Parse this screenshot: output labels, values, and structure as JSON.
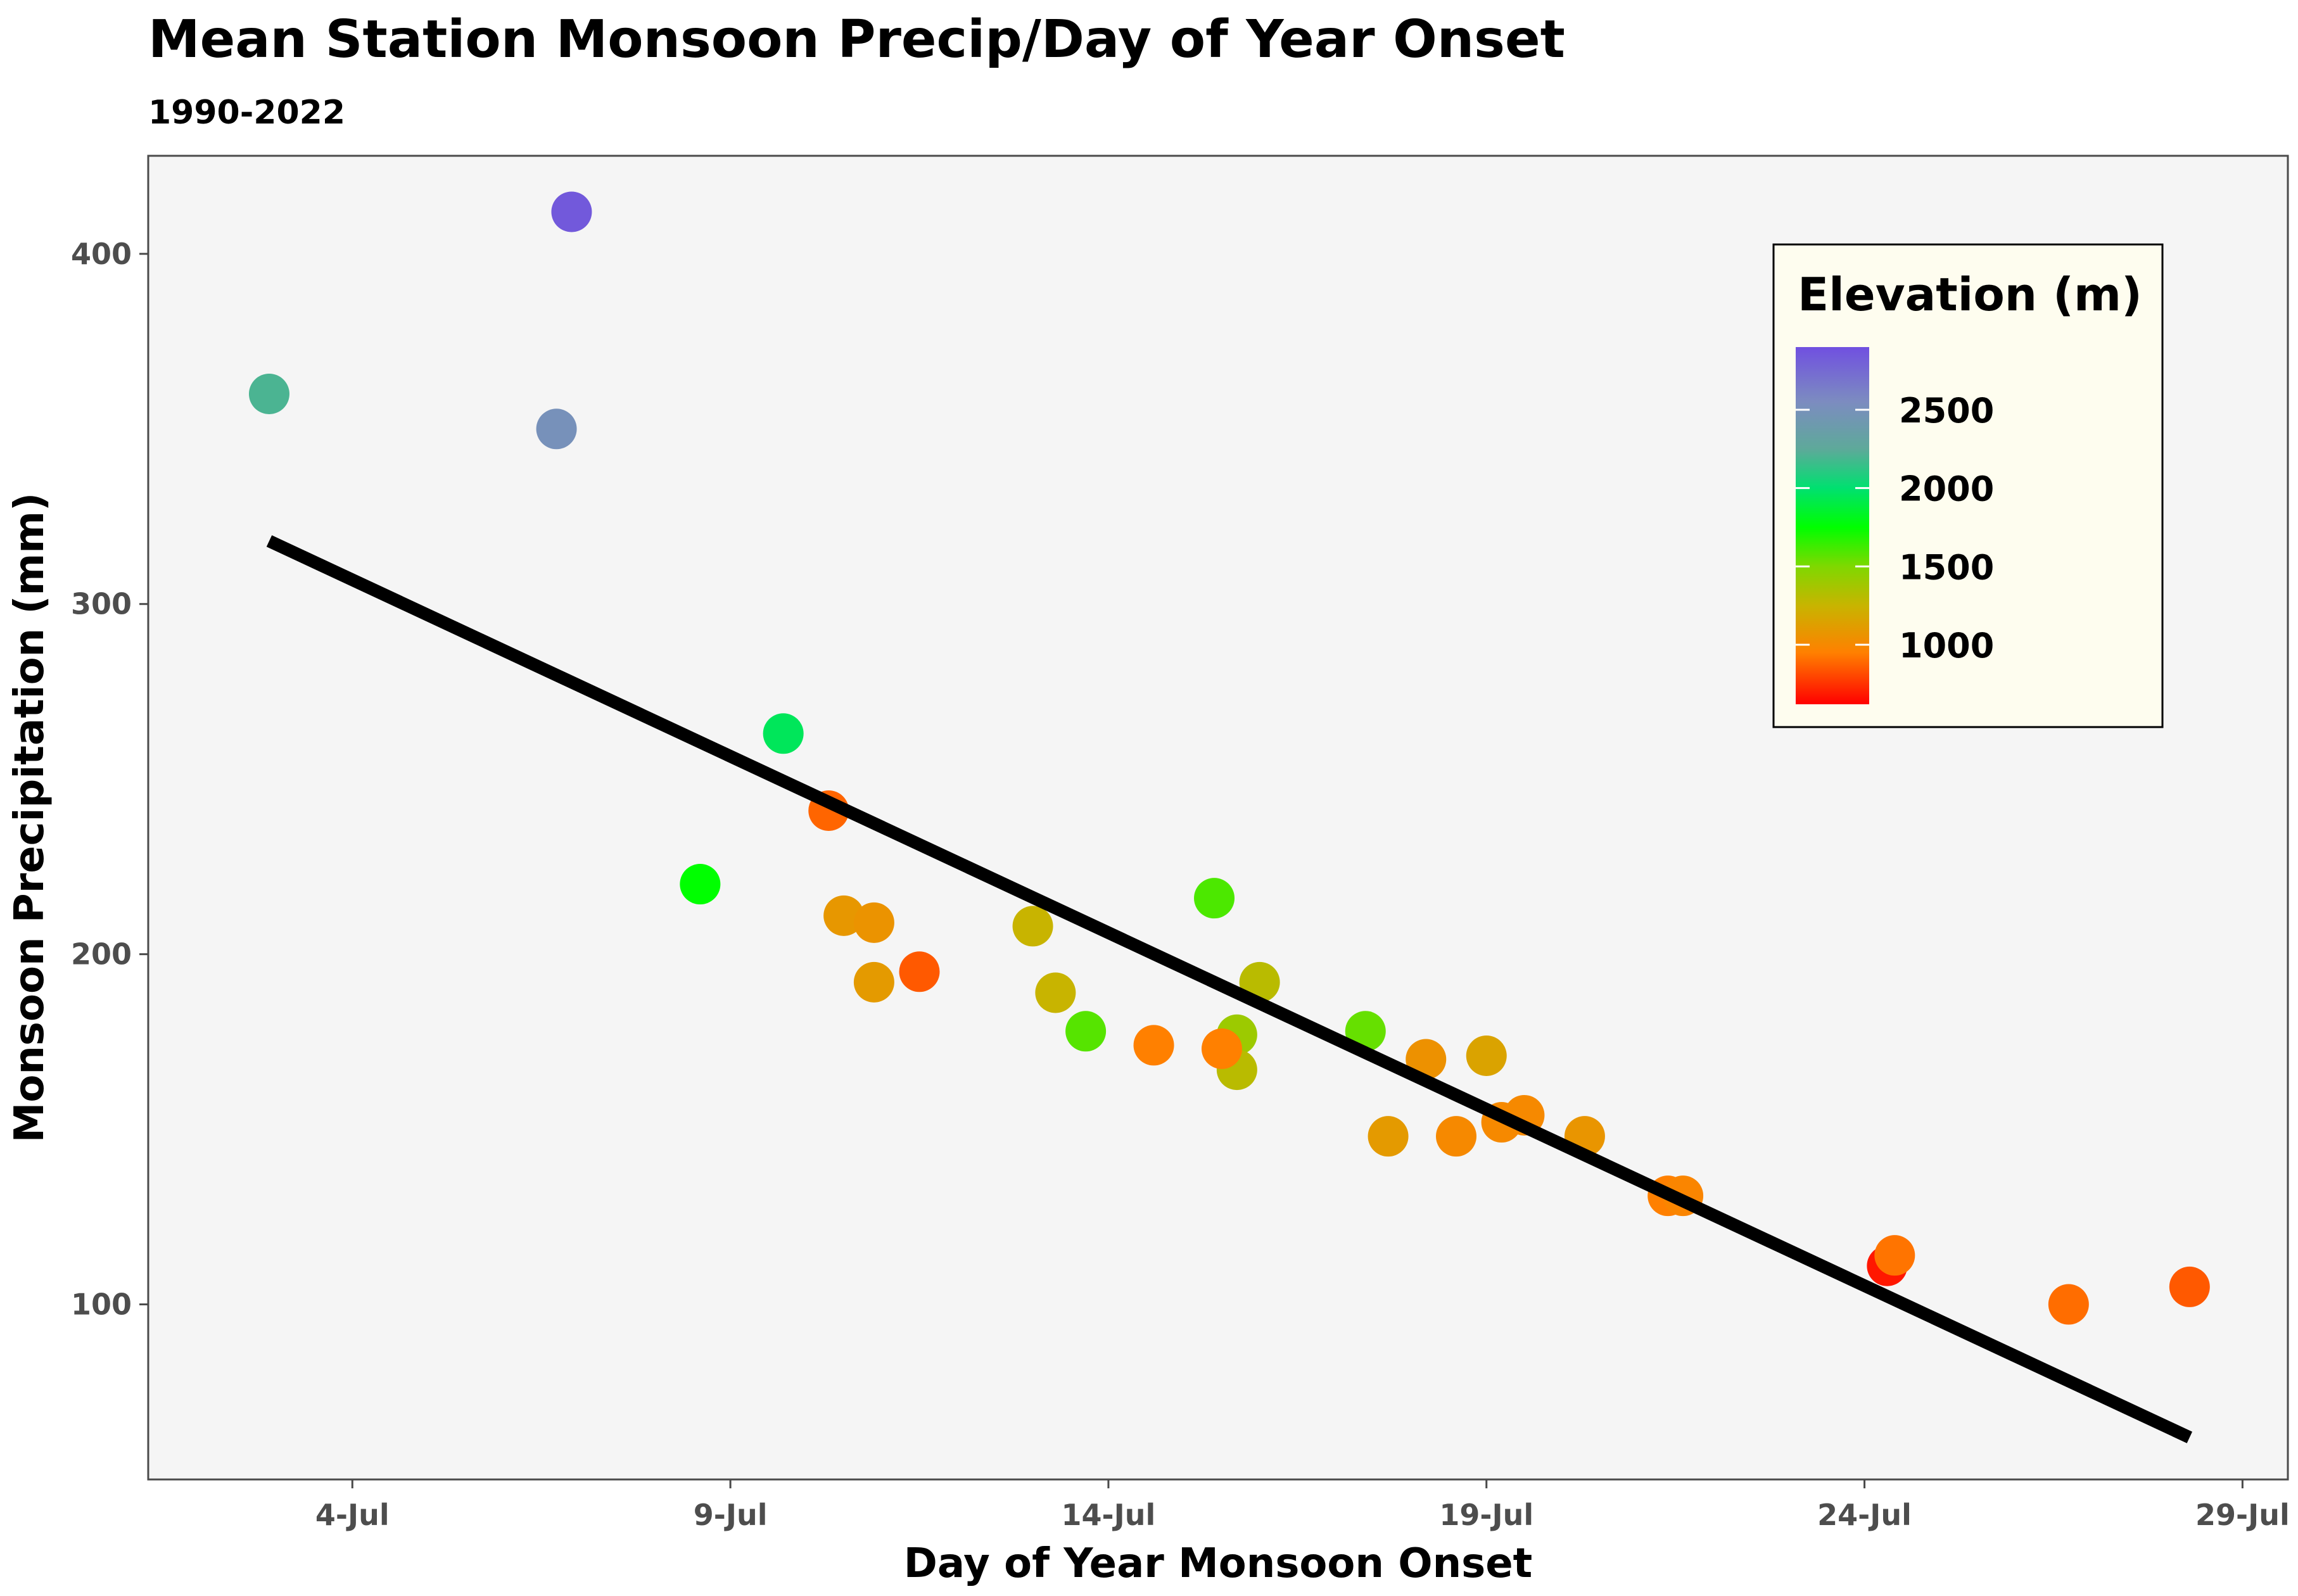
{
  "chart_data": {
    "type": "scatter",
    "title": "Mean Station Monsoon Precip/Day of Year Onset",
    "subtitle": "1990-2022",
    "xlabel": "Day of Year Monsoon Onset",
    "ylabel": "Monsoon Precipitation (mm)",
    "x_units": "day of year (2022 calendar, 185 = 4-Jul)",
    "xlim": [
      182.3,
      210.6
    ],
    "ylim": [
      50,
      428
    ],
    "x_ticks": [
      {
        "value": 185,
        "label": "4-Jul"
      },
      {
        "value": 190,
        "label": "9-Jul"
      },
      {
        "value": 195,
        "label": "14-Jul"
      },
      {
        "value": 200,
        "label": "19-Jul"
      },
      {
        "value": 205,
        "label": "24-Jul"
      },
      {
        "value": 210,
        "label": "29-Jul"
      }
    ],
    "y_ticks": [
      {
        "value": 100,
        "label": "100"
      },
      {
        "value": 200,
        "label": "200"
      },
      {
        "value": 300,
        "label": "300"
      },
      {
        "value": 400,
        "label": "400"
      }
    ],
    "grid": false,
    "background": "#f5f5f5",
    "point_color_by": "elevation_m",
    "points": [
      {
        "x": 183.9,
        "y": 360,
        "elevation_m": 2200
      },
      {
        "x": 187.9,
        "y": 412,
        "elevation_m": 2850
      },
      {
        "x": 187.7,
        "y": 350,
        "elevation_m": 2500
      },
      {
        "x": 189.6,
        "y": 220,
        "elevation_m": 1750
      },
      {
        "x": 190.7,
        "y": 263,
        "elevation_m": 1950
      },
      {
        "x": 191.3,
        "y": 241,
        "elevation_m": 880
      },
      {
        "x": 191.5,
        "y": 211,
        "elevation_m": 1080
      },
      {
        "x": 191.9,
        "y": 209,
        "elevation_m": 1060
      },
      {
        "x": 191.9,
        "y": 192,
        "elevation_m": 1100
      },
      {
        "x": 192.5,
        "y": 195,
        "elevation_m": 850
      },
      {
        "x": 194.0,
        "y": 208,
        "elevation_m": 1250
      },
      {
        "x": 194.3,
        "y": 189,
        "elevation_m": 1250
      },
      {
        "x": 194.7,
        "y": 178,
        "elevation_m": 1580
      },
      {
        "x": 195.6,
        "y": 174,
        "elevation_m": 950
      },
      {
        "x": 196.4,
        "y": 216,
        "elevation_m": 1600
      },
      {
        "x": 196.7,
        "y": 177,
        "elevation_m": 1400
      },
      {
        "x": 196.7,
        "y": 167,
        "elevation_m": 1300
      },
      {
        "x": 196.5,
        "y": 173,
        "elevation_m": 950
      },
      {
        "x": 197.0,
        "y": 192,
        "elevation_m": 1300
      },
      {
        "x": 198.4,
        "y": 178,
        "elevation_m": 1550
      },
      {
        "x": 198.7,
        "y": 148,
        "elevation_m": 1100
      },
      {
        "x": 199.2,
        "y": 170,
        "elevation_m": 1050
      },
      {
        "x": 200.0,
        "y": 171,
        "elevation_m": 1150
      },
      {
        "x": 199.6,
        "y": 148,
        "elevation_m": 1000
      },
      {
        "x": 200.2,
        "y": 152,
        "elevation_m": 1000
      },
      {
        "x": 200.5,
        "y": 154,
        "elevation_m": 1000
      },
      {
        "x": 201.3,
        "y": 148,
        "elevation_m": 1070
      },
      {
        "x": 202.4,
        "y": 131,
        "elevation_m": 950
      },
      {
        "x": 202.6,
        "y": 131,
        "elevation_m": 980
      },
      {
        "x": 205.3,
        "y": 111,
        "elevation_m": 680
      },
      {
        "x": 205.4,
        "y": 114,
        "elevation_m": 920
      },
      {
        "x": 207.7,
        "y": 100,
        "elevation_m": 900
      },
      {
        "x": 209.3,
        "y": 105,
        "elevation_m": 850
      }
    ],
    "trend_line": {
      "x": [
        183.9,
        209.3
      ],
      "y": [
        318,
        62
      ],
      "color": "#000000"
    },
    "legend": {
      "title": "Elevation (m)",
      "placement": "top-right",
      "background": "#fefdef",
      "range": [
        620,
        2900
      ],
      "breaks": [
        {
          "value": 2500,
          "label": "2500"
        },
        {
          "value": 2000,
          "label": "2000"
        },
        {
          "value": 1500,
          "label": "1500"
        },
        {
          "value": 1000,
          "label": "1000"
        }
      ],
      "color_stops": [
        {
          "value": 620,
          "color": "#ff0000"
        },
        {
          "value": 950,
          "color": "#ff8000"
        },
        {
          "value": 1250,
          "color": "#c8b400"
        },
        {
          "value": 1500,
          "color": "#7fd800"
        },
        {
          "value": 1750,
          "color": "#00ff00"
        },
        {
          "value": 2000,
          "color": "#00e070"
        },
        {
          "value": 2250,
          "color": "#5ea99a"
        },
        {
          "value": 2550,
          "color": "#7c8cc0"
        },
        {
          "value": 2900,
          "color": "#7050e0"
        }
      ]
    }
  }
}
